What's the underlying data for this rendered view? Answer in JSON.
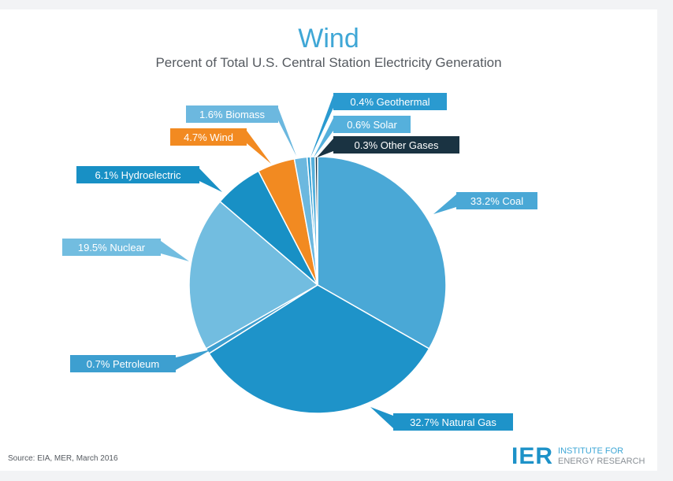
{
  "chart_data": {
    "type": "pie",
    "title": "Wind",
    "subtitle": "Percent of Total U.S. Central Station Electricity Generation",
    "slices": [
      {
        "label": "33.2% Coal",
        "value": 33.2,
        "color": "#4aa8d6",
        "label_bg": "#4aa8d6",
        "label_color": "#ffffff"
      },
      {
        "label": "32.7% Natural Gas",
        "value": 32.7,
        "color": "#1e93c9",
        "label_bg": "#1e93c9",
        "label_color": "#ffffff"
      },
      {
        "label": "0.7% Petroleum",
        "value": 0.7,
        "color": "#3d9fd0",
        "label_bg": "#3d9fd0",
        "label_color": "#ffffff"
      },
      {
        "label": "19.5% Nuclear",
        "value": 19.5,
        "color": "#72bde0",
        "label_bg": "#72bde0",
        "label_color": "#ffffff"
      },
      {
        "label": "6.1% Hydroelectric",
        "value": 6.1,
        "color": "#1890c5",
        "label_bg": "#1890c5",
        "label_color": "#ffffff"
      },
      {
        "label": "4.7% Wind",
        "value": 4.7,
        "color": "#f28a21",
        "label_bg": "#f28a21",
        "label_color": "#ffffff"
      },
      {
        "label": "1.6% Biomass",
        "value": 1.6,
        "color": "#6cb8df",
        "label_bg": "#6cb8df",
        "label_color": "#ffffff"
      },
      {
        "label": "0.4% Geothermal",
        "value": 0.4,
        "color": "#2a9ad0",
        "label_bg": "#2a9ad0",
        "label_color": "#ffffff"
      },
      {
        "label": "0.6% Solar",
        "value": 0.6,
        "color": "#55b0dc",
        "label_bg": "#55b0dc",
        "label_color": "#ffffff"
      },
      {
        "label": "0.3% Other Gases",
        "value": 0.3,
        "color": "#1a3342",
        "label_bg": "#1a3342",
        "label_color": "#ffffff"
      }
    ]
  },
  "footer": {
    "source": "Source: EIA, MER, March 2016",
    "logo_mark": "IER",
    "logo_line1": "INSTITUTE FOR",
    "logo_line2": "ENERGY RESEARCH"
  }
}
